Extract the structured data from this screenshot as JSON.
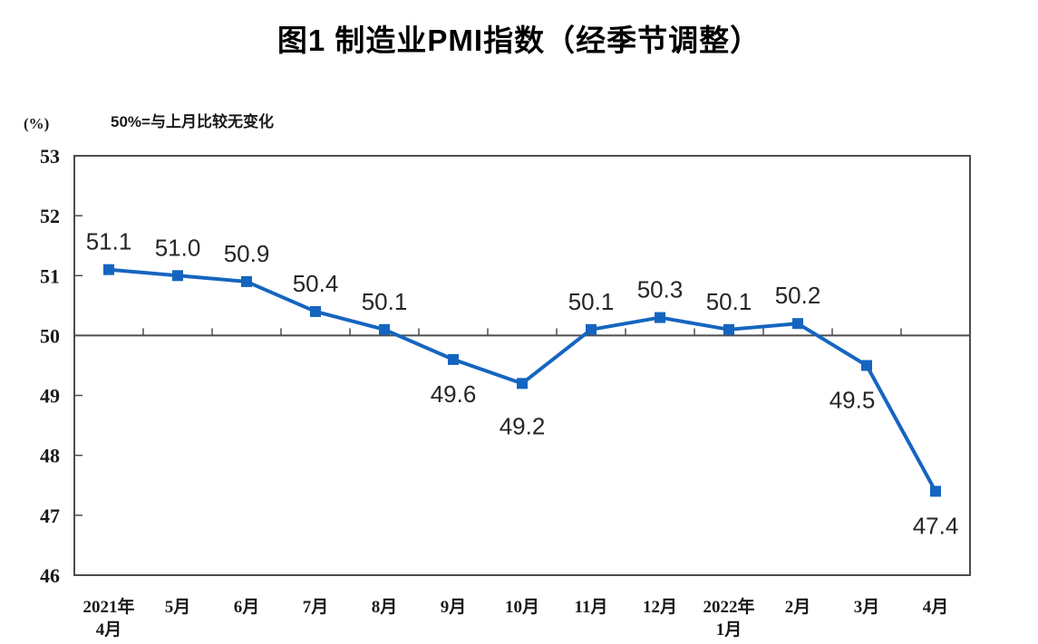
{
  "title": "图1 制造业PMI指数（经季节调整）",
  "y_axis_unit": "(%)",
  "reference_note": "50%=与上月比较无变化",
  "colors": {
    "line": "#1565c0",
    "marker": "#1565c0",
    "axis": "#4d4d4d",
    "tick_text": "#1a1a1a",
    "data_label": "#262626"
  },
  "chart_data": {
    "type": "line",
    "title": "图1 制造业PMI指数（经季节调整）",
    "subtitle": "50%=与上月比较无变化",
    "ylabel": "(%)",
    "categories": [
      "2021年\n4月",
      "5月",
      "6月",
      "7月",
      "8月",
      "9月",
      "10月",
      "11月",
      "12月",
      "2022年\n1月",
      "2月",
      "3月",
      "4月"
    ],
    "values": [
      51.1,
      51.0,
      50.9,
      50.4,
      50.1,
      49.6,
      49.2,
      50.1,
      50.3,
      50.1,
      50.2,
      49.5,
      47.4
    ],
    "point_labels": [
      "51.1",
      "51.0",
      "50.9",
      "50.4",
      "50.1",
      "49.6",
      "49.2",
      "50.1",
      "50.3",
      "50.1",
      "50.2",
      "49.5",
      "47.4"
    ],
    "label_pos": [
      "above",
      "above",
      "above",
      "above",
      "above",
      "below",
      "below",
      "above",
      "above",
      "above",
      "above",
      "below",
      "below"
    ],
    "ylim": [
      46,
      53
    ],
    "yticks": [
      53,
      52,
      51,
      50,
      49,
      48,
      47,
      46
    ],
    "reference_line": 50,
    "marker": "square",
    "grid": false,
    "legend": "none"
  }
}
